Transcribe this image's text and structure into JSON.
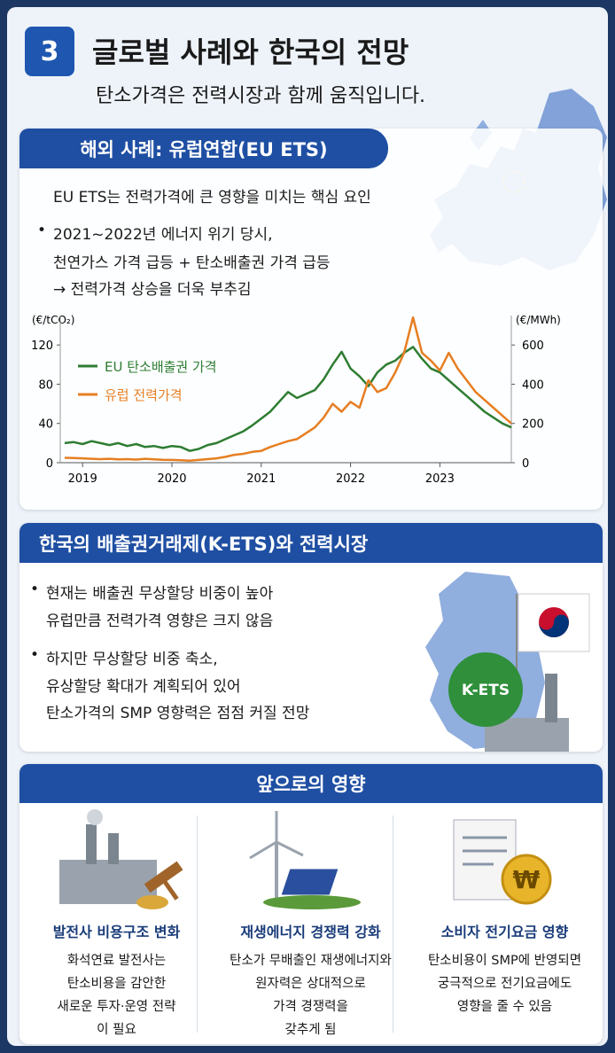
{
  "header": {
    "badge": "3",
    "title": "글로벌 사례와 한국의 전망",
    "subtitle": "탄소가격은 전력시장과 함께 움직입니다."
  },
  "eu_section": {
    "title": "해외 사례: 유럽연합(EU ETS)",
    "intro": "EU ETS는 전력가격에 큰 영향을 미치는 핵심 요인",
    "bullet_lines": [
      "2021~2022년 에너지 위기 당시,",
      "천연가스 가격 급등 + 탄소배출권 가격 급등",
      "→ 전력가격 상승을 더욱 부추김"
    ]
  },
  "chart_data": {
    "type": "line",
    "ylabel": "(€/tCO₂)",
    "y2label": "(€/MWh)",
    "x": [
      2018.8,
      2018.9,
      2019.0,
      2019.1,
      2019.2,
      2019.3,
      2019.4,
      2019.5,
      2019.6,
      2019.7,
      2019.8,
      2019.9,
      2020.0,
      2020.1,
      2020.2,
      2020.3,
      2020.4,
      2020.5,
      2020.6,
      2020.7,
      2020.8,
      2020.9,
      2021.0,
      2021.1,
      2021.2,
      2021.3,
      2021.4,
      2021.5,
      2021.6,
      2021.7,
      2021.8,
      2021.9,
      2022.0,
      2022.1,
      2022.2,
      2022.3,
      2022.4,
      2022.5,
      2022.6,
      2022.7,
      2022.8,
      2022.9,
      2023.0,
      2023.1,
      2023.2,
      2023.3,
      2023.4,
      2023.5,
      2023.6,
      2023.7,
      2023.8
    ],
    "xlim": [
      2018.75,
      2023.8
    ],
    "xticks": [
      2019,
      2020,
      2021,
      2022,
      2023
    ],
    "ylim": [
      0,
      150
    ],
    "yticks": [
      0,
      40,
      80,
      120
    ],
    "y2lim": [
      0,
      750
    ],
    "y2ticks": [
      0,
      200,
      400,
      600
    ],
    "legend": "upper left",
    "series": [
      {
        "name": "EU 탄소배출권 가격",
        "color": "#2e7d32",
        "axis": "y",
        "values": [
          20,
          21,
          19,
          22,
          20,
          18,
          20,
          17,
          19,
          16,
          17,
          15,
          17,
          16,
          12,
          14,
          18,
          20,
          24,
          28,
          32,
          38,
          45,
          52,
          62,
          72,
          66,
          70,
          74,
          85,
          100,
          113,
          96,
          88,
          78,
          92,
          100,
          104,
          112,
          118,
          106,
          96,
          92,
          84,
          76,
          68,
          60,
          52,
          46,
          40,
          36
        ]
      },
      {
        "name": "유럽 전력가격",
        "color": "#e67e22",
        "axis": "y2",
        "values": [
          25,
          24,
          22,
          20,
          18,
          20,
          17,
          18,
          16,
          20,
          17,
          15,
          14,
          12,
          10,
          14,
          18,
          22,
          30,
          40,
          45,
          55,
          60,
          80,
          95,
          110,
          120,
          150,
          180,
          230,
          300,
          260,
          310,
          280,
          420,
          360,
          380,
          460,
          560,
          740,
          560,
          520,
          470,
          560,
          480,
          420,
          360,
          320,
          280,
          240,
          200
        ]
      }
    ]
  },
  "korea_section": {
    "title": "한국의 배출권거래제(K-ETS)와 전력시장",
    "bullets": [
      [
        "현재는 배출권 무상할당 비중이 높아",
        "유럽만큼 전력가격 영향은 크지 않음"
      ],
      [
        "하지만 무상할당 비중 축소,",
        "유상할당 확대가 계획되어 있어",
        "탄소가격의 SMP 영향력은 점점 커질 전망"
      ]
    ],
    "badge": "K-ETS"
  },
  "impact_section": {
    "title": "앞으로의 영향",
    "coin_symbol": "₩",
    "cards": [
      {
        "title": "발전사 비용구조 변화",
        "lines": [
          "화석연료 발전사는",
          "탄소비용을 감안한",
          "새로운 투자·운영 전략",
          "이 필요"
        ]
      },
      {
        "title": "재생에너지 경쟁력 강화",
        "lines": [
          "탄소가 무배출인 재생에너지와",
          "원자력은 상대적으로",
          "가격 경쟁력을",
          "갖추게 됨"
        ]
      },
      {
        "title": "소비자 전기요금 영향",
        "lines": [
          "탄소비용이 SMP에 반영되면",
          "궁극적으로 전기요금에도",
          "영향을 줄 수 있음"
        ]
      }
    ]
  }
}
